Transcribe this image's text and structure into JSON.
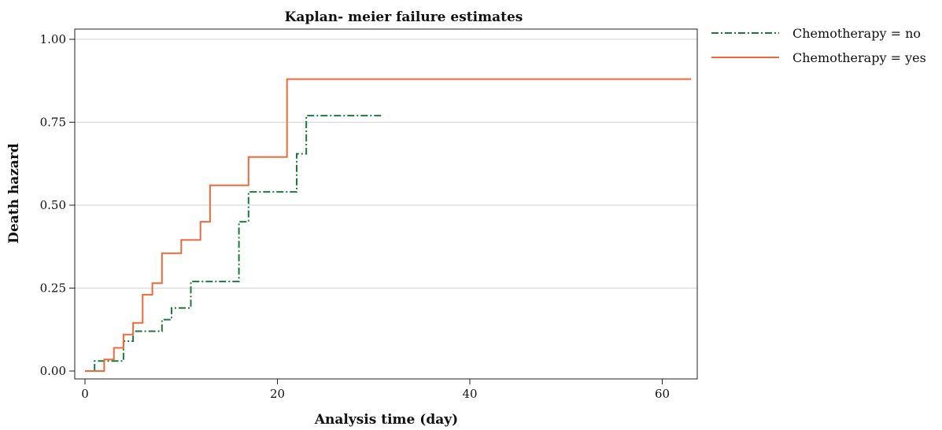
{
  "chart_data": {
    "type": "line",
    "title": "Kaplan- meier failure estimates",
    "xlabel": "Analysis time (day)",
    "ylabel": "Death hazard",
    "xlim": [
      0,
      63
    ],
    "ylim": [
      0,
      1
    ],
    "x_ticks": [
      0,
      20,
      40,
      60
    ],
    "x_tick_labels": [
      "0",
      "20",
      "40",
      "60"
    ],
    "y_ticks": [
      0,
      0.25,
      0.5,
      0.75,
      1
    ],
    "y_tick_labels": [
      "0.00",
      "0.25",
      "0.50",
      "0.75",
      "1.00"
    ],
    "grid": "horizontal",
    "legend_position": "right",
    "series": [
      {
        "name": "Chemotherapy = no",
        "color": "#1a7a3c",
        "line_style": "dash-dot",
        "points": [
          [
            1,
            0
          ],
          [
            1,
            0.03
          ],
          [
            4,
            0.03
          ],
          [
            4,
            0.09
          ],
          [
            5,
            0.09
          ],
          [
            5,
            0.12
          ],
          [
            8,
            0.12
          ],
          [
            8,
            0.155
          ],
          [
            9,
            0.155
          ],
          [
            9,
            0.19
          ],
          [
            11,
            0.19
          ],
          [
            11,
            0.27
          ],
          [
            16,
            0.27
          ],
          [
            16,
            0.45
          ],
          [
            17,
            0.45
          ],
          [
            17,
            0.54
          ],
          [
            22,
            0.54
          ],
          [
            22,
            0.655
          ],
          [
            23,
            0.655
          ],
          [
            23,
            0.77
          ],
          [
            31,
            0.77
          ]
        ]
      },
      {
        "name": "Chemotherapy = yes",
        "color": "#f0693a",
        "line_style": "solid",
        "points": [
          [
            0,
            0
          ],
          [
            2,
            0
          ],
          [
            2,
            0.035
          ],
          [
            3,
            0.035
          ],
          [
            3,
            0.07
          ],
          [
            4,
            0.07
          ],
          [
            4,
            0.11
          ],
          [
            5,
            0.11
          ],
          [
            5,
            0.145
          ],
          [
            6,
            0.145
          ],
          [
            6,
            0.23
          ],
          [
            7,
            0.23
          ],
          [
            7,
            0.265
          ],
          [
            8,
            0.265
          ],
          [
            8,
            0.355
          ],
          [
            10,
            0.355
          ],
          [
            10,
            0.395
          ],
          [
            12,
            0.395
          ],
          [
            12,
            0.45
          ],
          [
            13,
            0.45
          ],
          [
            13,
            0.56
          ],
          [
            17,
            0.56
          ],
          [
            17,
            0.645
          ],
          [
            21,
            0.645
          ],
          [
            21,
            0.88
          ],
          [
            63,
            0.88
          ]
        ]
      }
    ]
  }
}
